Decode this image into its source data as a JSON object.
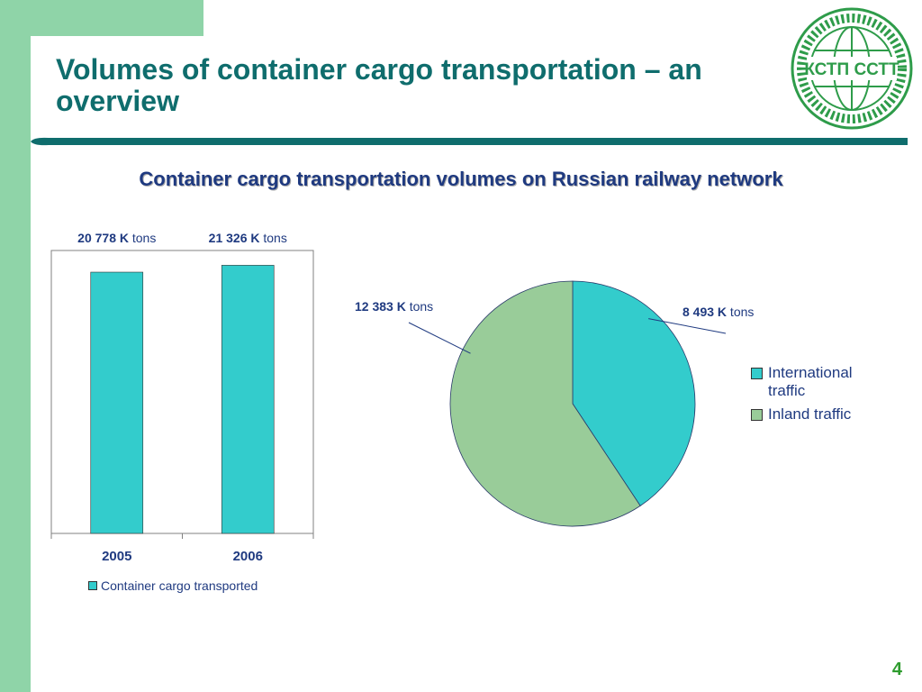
{
  "slide": {
    "title": "Volumes of container cargo transportation – an overview",
    "page_number": "4",
    "logo_text": "КСТП ССТТ"
  },
  "colors": {
    "accent_green": "#8fd4a8",
    "title_teal": "#0f6d6d",
    "text_navy": "#1f3a80",
    "bar_fill": "#33cccc",
    "pie_international": "#33cccc",
    "pie_inland": "#99cc99",
    "logo_green": "#2e9c4a"
  },
  "chart_data": [
    {
      "type": "bar",
      "title": "Container cargo transportation volumes on Russian railway network",
      "categories": [
        "2005",
        "2006"
      ],
      "series": [
        {
          "name": "Container cargo transported",
          "values": [
            20778,
            21326
          ]
        }
      ],
      "data_labels": [
        {
          "value": "20 778 K",
          "unit": "tons"
        },
        {
          "value": "21 326 K",
          "unit": "tons"
        }
      ],
      "ylim": [
        0,
        22500
      ],
      "grid": false,
      "legend": "bottom"
    },
    {
      "type": "pie",
      "slices": [
        {
          "name": "International traffic",
          "value": 8493,
          "label_value": "8 493 K",
          "unit": "tons"
        },
        {
          "name": "Inland traffic",
          "value": 12383,
          "label_value": "12 383 K",
          "unit": "tons"
        }
      ],
      "legend": "right"
    }
  ]
}
